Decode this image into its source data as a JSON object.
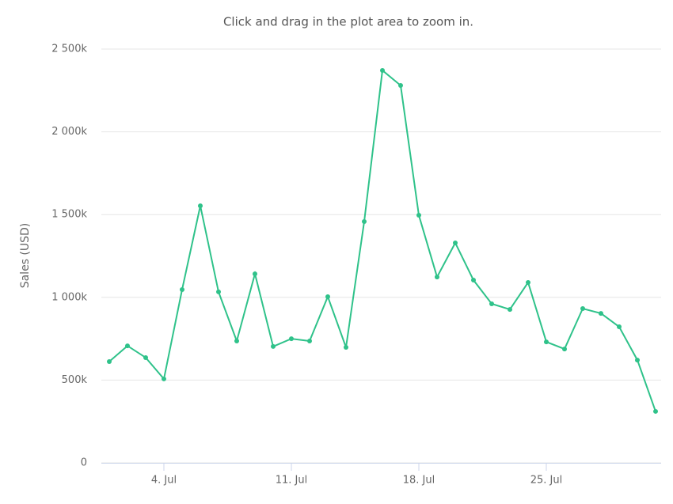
{
  "chart_data": {
    "type": "line",
    "subtitle": "Click and drag in the plot area to zoom in.",
    "y_label": "Sales (USD)",
    "categories": [
      null,
      null,
      null,
      "4. Jul",
      null,
      null,
      null,
      null,
      null,
      null,
      "11. Jul",
      null,
      null,
      null,
      null,
      null,
      null,
      "18. Jul",
      null,
      null,
      null,
      null,
      null,
      null,
      "25. Jul",
      null,
      null,
      null,
      null,
      null,
      null
    ],
    "values": [
      612000,
      707000,
      636000,
      507000,
      1047000,
      1553000,
      1033000,
      736000,
      1142000,
      703000,
      750000,
      736000,
      1004000,
      698000,
      1458000,
      2371000,
      2280000,
      1496000,
      1123000,
      1329000,
      1104000,
      961000,
      927000,
      1090000,
      731000,
      688000,
      932000,
      903000,
      822000,
      621000,
      311000
    ],
    "color": "#2fc28a",
    "ylim": [
      0,
      2500000
    ],
    "yticks": [
      0,
      {
        "value": 500000,
        "label": "500k"
      },
      {
        "value": 1000000,
        "label": "1 000k"
      },
      {
        "value": 1500000,
        "label": "1 500k"
      },
      {
        "value": 2000000,
        "label": "2 000k"
      },
      {
        "value": 2500000,
        "label": "2 500k"
      }
    ],
    "grid": true
  }
}
